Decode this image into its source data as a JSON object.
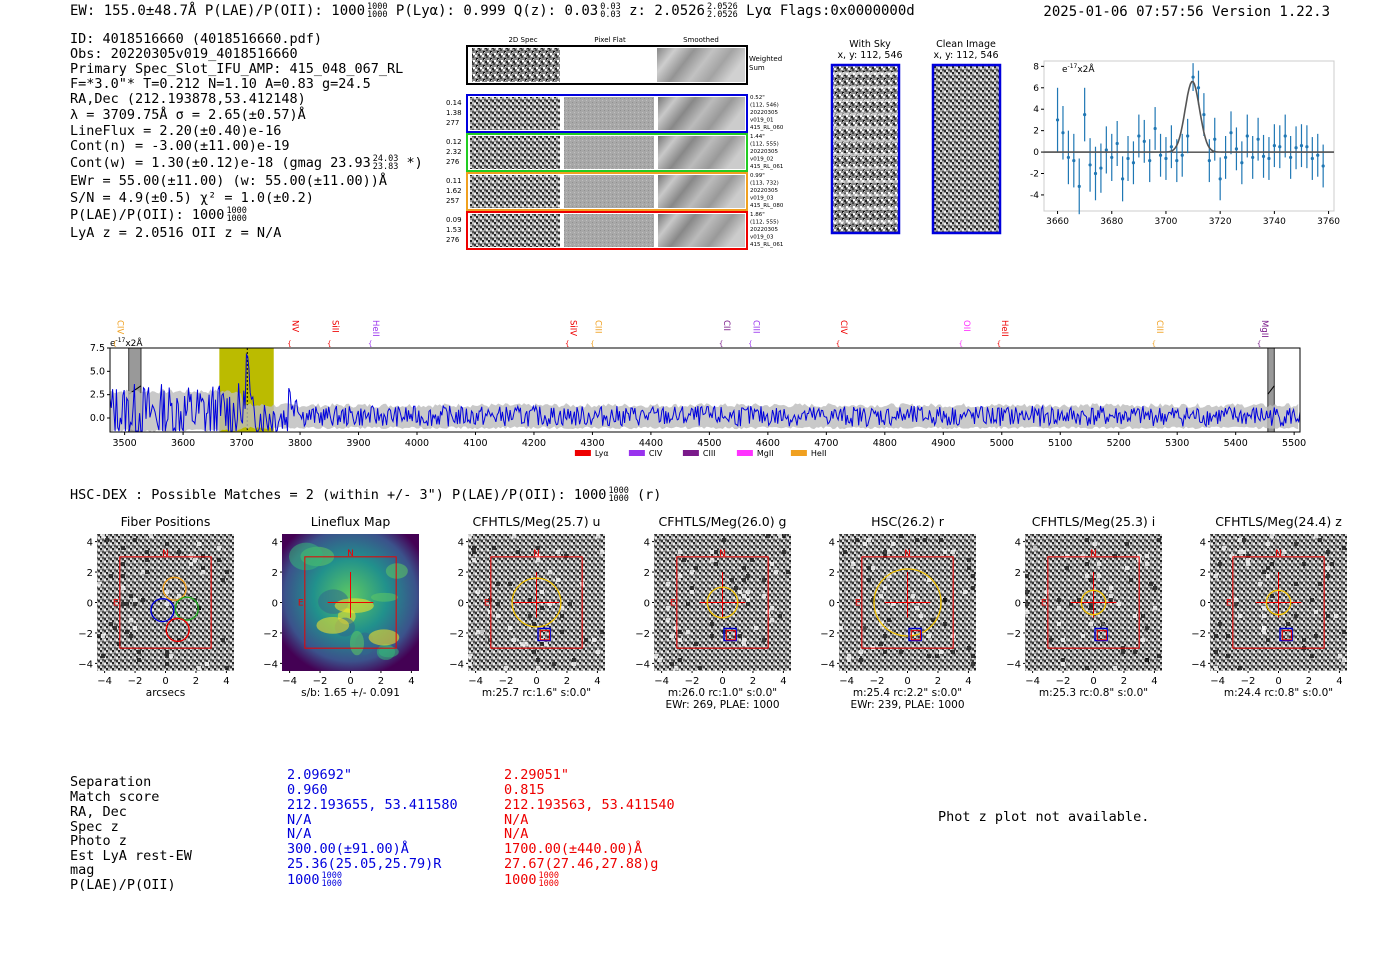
{
  "header": {
    "left": "EW: 155.0±48.7Å  P(LAE)/P(OII): 1000",
    "left_frac_top": "1000",
    "left_frac_bot": "1000",
    "plya": "  P(Lyα): 0.999  Q(z): 0.03",
    "qz_top": "0.03",
    "qz_bot": "0.03",
    "z": "  z: 2.0526",
    "z_top": "2.0526",
    "z_bot": "2.0526",
    "tail": " Lyα  Flags:0x0000000d",
    "right": "2025-01-06 07:57:56  Version 1.22.3"
  },
  "info": {
    "id": "ID: 4018516660 (4018516660.pdf)",
    "obs": "Obs: 20220305v019_4018516660",
    "primary": "Primary Spec_Slot_IFU_AMP: 415_048_067_RL",
    "fwhm": "F=*3.0\"*  T=0.212  N=1.10  A=0.83  g=24.5",
    "radec": "RA,Dec (212.193878,53.412148)",
    "lambda": "λ = 3709.75Å  σ = 2.65(±0.57)Å",
    "lineflux": "LineFlux = 2.20(±0.40)e-16",
    "contn": "Cont(n) = -3.00(±11.00)e-19",
    "contw": "Cont(w) = 1.30(±0.12)e-18 (gmag 23.93",
    "contw_top": "24.03",
    "contw_bot": "23.83",
    "contw_end": " *)",
    "ewr": "EWr = 55.00(±11.00) (w: 55.00(±11.00))Å",
    "sn": "S/N = 4.9(±0.5)  χ² = 1.0(±0.2)",
    "plae": "P(LAE)/P(OII): 1000",
    "plae_top": "1000",
    "plae_bot": "1000",
    "lyaz": "LyA z = 2.0516  OII z = N/A"
  },
  "cutouts": {
    "col_2d": "2D Spec",
    "col_flat": "Pixel Flat",
    "col_smooth": "Smoothed",
    "weighted": "Weighted",
    "sum": "Sum",
    "rows": [
      {
        "left": [
          "0.14",
          "1.38",
          "277"
        ],
        "right": [
          "0.52\"",
          "(112, 546)",
          "20220305",
          "v019_01",
          "415_RL_060"
        ],
        "color": "#0000dd"
      },
      {
        "left": [
          "0.12",
          "2.32",
          "276"
        ],
        "right": [
          "1.44\"",
          "(112, 555)",
          "20220305",
          "v019_02",
          "415_RL_061"
        ],
        "color": "#22cc22"
      },
      {
        "left": [
          "0.11",
          "1.62",
          "257"
        ],
        "right": [
          "0.99\"",
          "(113, 732)",
          "20220305",
          "v019_03",
          "415_RL_080"
        ],
        "color": "#f0a020"
      },
      {
        "left": [
          "0.09",
          "1.53",
          "276"
        ],
        "right": [
          "1.86\"",
          "(112, 555)",
          "20220305",
          "v019_03",
          "415_RL_061"
        ],
        "color": "#ee0000"
      }
    ],
    "with_sky": "With Sky",
    "with_sky_xy": "x, y: 112, 546",
    "clean": "Clean Image",
    "clean_xy": "x, y: 112, 546"
  },
  "chart_data": [
    {
      "type": "line",
      "title": "",
      "ylabel": "e-17x2Å",
      "y_unit": "e",
      "y_unit_sup": "-17",
      "y_unit_tail": "x2Å",
      "xlim": [
        3655,
        3762
      ],
      "ylim": [
        -5.5,
        8.5
      ],
      "xticks": [
        3660,
        3680,
        3700,
        3720,
        3740,
        3760
      ],
      "yticks": [
        -4,
        -2,
        0,
        2,
        4,
        6,
        8
      ],
      "points_x": [
        3660,
        3662,
        3664,
        3666,
        3668,
        3670,
        3672,
        3674,
        3676,
        3678,
        3680,
        3682,
        3684,
        3686,
        3688,
        3690,
        3692,
        3694,
        3696,
        3698,
        3700,
        3702,
        3704,
        3706,
        3708,
        3710,
        3712,
        3714,
        3716,
        3718,
        3720,
        3722,
        3724,
        3726,
        3728,
        3730,
        3732,
        3734,
        3736,
        3738,
        3740,
        3742,
        3744,
        3746,
        3748,
        3750,
        3752,
        3754,
        3756,
        3758
      ],
      "points_y": [
        3.0,
        1.8,
        -0.5,
        -0.8,
        -3.2,
        3.5,
        -1.2,
        -2.0,
        -1.5,
        0.2,
        -0.5,
        0.8,
        -2.5,
        -0.6,
        -1.0,
        1.5,
        1.0,
        -0.8,
        2.2,
        -0.3,
        -0.6,
        0.5,
        -0.8,
        -0.3,
        1.5,
        7.0,
        6.0,
        3.5,
        -0.8,
        1.2,
        -2.5,
        -0.5,
        1.8,
        0.3,
        -1.0,
        1.5,
        -0.5,
        1.2,
        -0.4,
        -0.6,
        0.6,
        0.5,
        1.5,
        -0.5,
        0.4,
        0.6,
        0.5,
        -0.6,
        -0.3,
        -1.3
      ],
      "errors": [
        3.0,
        2.5,
        2.5,
        2.5,
        2.6,
        2.5,
        2.5,
        2.5,
        2.3,
        2.2,
        2.2,
        2.1,
        2.1,
        2.1,
        2.0,
        2.0,
        2.0,
        2.0,
        2.0,
        2.0,
        2.0,
        2.0,
        2.0,
        2.0,
        1.6,
        1.3,
        1.6,
        2.0,
        2.0,
        2.0,
        2.0,
        2.0,
        2.0,
        2.0,
        2.0,
        2.0,
        2.0,
        2.0,
        2.0,
        2.0,
        2.0,
        2.0,
        2.0,
        2.0,
        2.0,
        2.0,
        2.0,
        2.0,
        2.0,
        2.0
      ],
      "fit": {
        "center": 3709.75,
        "sigma": 2.65,
        "amplitude": 6.6
      }
    },
    {
      "type": "line",
      "title": "",
      "y_unit": "e",
      "y_unit_sup": "-17",
      "y_unit_tail": "x2Å",
      "xlim": [
        3475,
        5510
      ],
      "ylim": [
        -1.5,
        7.5
      ],
      "xticks": [
        3500,
        3600,
        3700,
        3800,
        3900,
        4000,
        4100,
        4200,
        4300,
        4400,
        4500,
        4600,
        4700,
        4800,
        4900,
        5000,
        5100,
        5200,
        5300,
        5400,
        5500
      ],
      "yticks": [
        0.0,
        2.5,
        5.0,
        7.5
      ],
      "ytick_labels": [
        "0.0",
        "2.5",
        "5.0",
        "7.5"
      ],
      "highlight": {
        "x0": 3662,
        "x1": 3755,
        "center": 3709.75
      },
      "masked": [
        [
          3507,
          3528
        ],
        [
          5455,
          5466
        ]
      ],
      "line_labels": [
        {
          "name": "CIV",
          "x": 3483,
          "color": "#f0a020"
        },
        {
          "name": "NV",
          "x": 3782,
          "color": "#ee0000"
        },
        {
          "name": "SiII",
          "x": 3850,
          "color": "#ee0000"
        },
        {
          "name": "HeII",
          "x": 3920,
          "color": "#9933ee"
        },
        {
          "name": "SiIV",
          "x": 4257,
          "color": "#ee0000"
        },
        {
          "name": "CIII",
          "x": 4300,
          "color": "#f0a020"
        },
        {
          "name": "CII",
          "x": 4520,
          "color": "#7a1a8a"
        },
        {
          "name": "CIII",
          "x": 4570,
          "color": "#9933ee"
        },
        {
          "name": "CIV",
          "x": 4720,
          "color": "#ee0000"
        },
        {
          "name": "OII",
          "x": 4930,
          "color": "#ff33ff"
        },
        {
          "name": "HeII",
          "x": 4995,
          "color": "#ee0000"
        },
        {
          "name": "CIII",
          "x": 5260,
          "color": "#f0a020"
        },
        {
          "name": "MgII",
          "x": 5440,
          "color": "#7a1a8a"
        }
      ],
      "legend": [
        {
          "name": "Lyα",
          "color": "#ee0000"
        },
        {
          "name": "CIV",
          "color": "#9933ee"
        },
        {
          "name": "CIII",
          "color": "#7a1a8a"
        },
        {
          "name": "MgII",
          "color": "#ff33ff"
        },
        {
          "name": "HeII",
          "color": "#f0a020"
        }
      ],
      "series_note": "noisy spectrum with emission at 3710"
    }
  ],
  "hsc": {
    "title": "HSC-DEX : Possible Matches = 2 (within +/- 3\")  P(LAE)/P(OII): 1000",
    "frac_top": "1000",
    "frac_bot": "1000",
    "tail": " (r)"
  },
  "panels": [
    {
      "title": "Fiber Positions",
      "caption": "arcsecs",
      "caption2": ""
    },
    {
      "title": "Lineflux Map",
      "caption": "s/b: 1.65 +/- 0.091",
      "caption2": ""
    },
    {
      "title": "CFHTLS/Meg(25.7) u",
      "caption": "m:25.7 rc:1.6\"  s:0.0\"",
      "caption2": ""
    },
    {
      "title": "CFHTLS/Meg(26.0) g",
      "caption": "m:26.0 rc:1.0\"  s:0.0\"",
      "caption2": "EWr: 269, PLAE: 1000"
    },
    {
      "title": "HSC(26.2) r",
      "caption": "m:25.4 rc:2.2\"  s:0.0\"",
      "caption2": "EWr: 239, PLAE: 1000"
    },
    {
      "title": "CFHTLS/Meg(25.3) i",
      "caption": "m:25.3 rc:0.8\"  s:0.0\"",
      "caption2": ""
    },
    {
      "title": "CFHTLS/Meg(24.4) z",
      "caption": "m:24.4 rc:0.8\"  s:0.0\"",
      "caption2": ""
    }
  ],
  "panel_ticks": [
    "4",
    "2",
    "0",
    "−2",
    "−4"
  ],
  "panel_xticks": [
    "−4",
    "−2",
    "0",
    "2",
    "4"
  ],
  "compass_n": "N",
  "compass_e": "E",
  "match_table": {
    "labels": [
      "Separation",
      "Match score",
      "RA, Dec",
      "Spec z",
      "Photo z",
      "Est LyA rest-EW",
      "mag",
      "P(LAE)/P(OII)"
    ],
    "blue": [
      "2.09692\"",
      "0.960",
      "212.193655, 53.411580",
      "N/A",
      "N/A",
      "300.00(±91.00)Å",
      "25.36(25.05,25.79)R",
      "1000"
    ],
    "red": [
      "2.29051\"",
      "0.815",
      "212.193563, 53.411540",
      "N/A",
      "N/A",
      "1700.00(±440.00)Å",
      "27.67(27.46,27.88)g",
      "1000"
    ],
    "frac": "1000"
  },
  "photz_note": "Phot z plot not available."
}
